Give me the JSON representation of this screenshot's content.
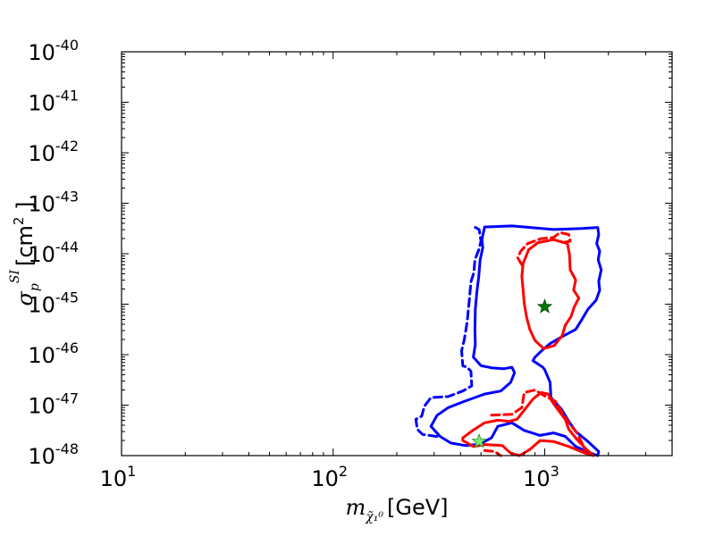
{
  "chart_data": {
    "type": "line",
    "title": "",
    "xscale": "log",
    "yscale": "log",
    "xlim": [
      10,
      4000
    ],
    "ylim": [
      1e-48,
      1e-40
    ],
    "xlabel": {
      "symbol": "m",
      "subscript": "χ̃₁⁰",
      "unit": "[GeV]"
    },
    "ylabel": {
      "symbol": "σ",
      "subscript": "p",
      "superscript": "SI",
      "unit_prefix": "[cm",
      "unit_exp": "2",
      "unit_suffix": " ]"
    },
    "xticks": [
      {
        "value": 10,
        "base": "10",
        "exp": "1"
      },
      {
        "value": 100,
        "base": "10",
        "exp": "2"
      },
      {
        "value": 1000,
        "base": "10",
        "exp": "3"
      }
    ],
    "yticks": [
      {
        "value": 1e-40,
        "base": "10",
        "exp": "-40"
      },
      {
        "value": 1e-41,
        "base": "10",
        "exp": "-41"
      },
      {
        "value": 1e-42,
        "base": "10",
        "exp": "-42"
      },
      {
        "value": 1e-43,
        "base": "10",
        "exp": "-43"
      },
      {
        "value": 1e-44,
        "base": "10",
        "exp": "-44"
      },
      {
        "value": 1e-45,
        "base": "10",
        "exp": "-45"
      },
      {
        "value": 1e-46,
        "base": "10",
        "exp": "-46"
      },
      {
        "value": 1e-47,
        "base": "10",
        "exp": "-47"
      },
      {
        "value": 1e-48,
        "base": "10",
        "exp": "-48"
      }
    ],
    "series": [
      {
        "name": "blue-dashed-contour",
        "color": "#0000ff",
        "dash": true,
        "points": [
          [
            470,
            -43.48
          ],
          [
            490,
            -43.52
          ],
          [
            500,
            -43.75
          ],
          [
            488,
            -43.92
          ],
          [
            468,
            -44.12
          ],
          [
            462,
            -44.38
          ],
          [
            448,
            -44.56
          ],
          [
            440,
            -44.92
          ],
          [
            430,
            -45.35
          ],
          [
            417,
            -45.7
          ],
          [
            405,
            -45.92
          ],
          [
            410,
            -46.22
          ],
          [
            430,
            -46.25
          ],
          [
            448,
            -46.33
          ],
          [
            452,
            -46.62
          ],
          [
            410,
            -46.72
          ],
          [
            350,
            -46.83
          ],
          [
            290,
            -46.85
          ],
          [
            270,
            -47.02
          ],
          [
            262,
            -47.22
          ],
          [
            246,
            -47.28
          ],
          [
            250,
            -47.48
          ],
          [
            265,
            -47.58
          ],
          [
            320,
            -47.63
          ]
        ]
      },
      {
        "name": "blue-solid-contour",
        "color": "#0000ff",
        "dash": false,
        "points": [
          [
            520,
            -43.47
          ],
          [
            700,
            -43.45
          ],
          [
            1100,
            -43.52
          ],
          [
            1500,
            -43.5
          ],
          [
            1780,
            -43.48
          ],
          [
            1800,
            -43.62
          ],
          [
            1760,
            -43.8
          ],
          [
            1820,
            -43.95
          ],
          [
            1790,
            -44.12
          ],
          [
            1850,
            -44.32
          ],
          [
            1800,
            -44.55
          ],
          [
            1820,
            -44.72
          ],
          [
            1750,
            -44.92
          ],
          [
            1600,
            -45.1
          ],
          [
            1500,
            -45.3
          ],
          [
            1400,
            -45.5
          ],
          [
            1200,
            -45.65
          ],
          [
            1060,
            -45.78
          ],
          [
            980,
            -45.9
          ],
          [
            900,
            -46.05
          ],
          [
            880,
            -46.12
          ],
          [
            980,
            -46.25
          ],
          [
            1000,
            -46.3
          ],
          [
            1060,
            -46.55
          ],
          [
            1070,
            -46.85
          ],
          [
            1200,
            -47.08
          ],
          [
            1300,
            -47.32
          ],
          [
            1400,
            -47.52
          ],
          [
            1600,
            -47.72
          ],
          [
            1800,
            -47.92
          ],
          [
            1780,
            -48.0
          ],
          [
            1650,
            -47.95
          ],
          [
            1400,
            -47.82
          ],
          [
            1250,
            -47.62
          ],
          [
            1100,
            -47.55
          ],
          [
            950,
            -47.6
          ],
          [
            800,
            -47.5
          ],
          [
            700,
            -47.35
          ],
          [
            600,
            -47.42
          ],
          [
            560,
            -47.65
          ],
          [
            520,
            -47.72
          ],
          [
            480,
            -47.78
          ],
          [
            420,
            -47.8
          ],
          [
            360,
            -47.75
          ],
          [
            320,
            -47.62
          ],
          [
            290,
            -47.42
          ],
          [
            310,
            -47.2
          ],
          [
            350,
            -47.05
          ],
          [
            420,
            -46.92
          ],
          [
            520,
            -46.78
          ],
          [
            620,
            -46.72
          ],
          [
            690,
            -46.55
          ],
          [
            720,
            -46.36
          ],
          [
            700,
            -46.25
          ],
          [
            640,
            -46.28
          ],
          [
            560,
            -46.26
          ],
          [
            500,
            -46.22
          ],
          [
            460,
            -46.05
          ],
          [
            470,
            -45.8
          ],
          [
            468,
            -45.5
          ],
          [
            470,
            -45.1
          ],
          [
            478,
            -44.75
          ],
          [
            488,
            -44.45
          ],
          [
            495,
            -44.12
          ],
          [
            510,
            -43.88
          ],
          [
            505,
            -43.72
          ],
          [
            520,
            -43.47
          ]
        ]
      },
      {
        "name": "red-dashed-contour-upper",
        "color": "#ff0000",
        "dash": true,
        "points": [
          [
            780,
            -44.22
          ],
          [
            745,
            -44.08
          ],
          [
            770,
            -43.95
          ],
          [
            830,
            -43.8
          ],
          [
            960,
            -43.7
          ],
          [
            1100,
            -43.68
          ],
          [
            1180,
            -43.58
          ],
          [
            1300,
            -43.62
          ],
          [
            1320,
            -43.75
          ],
          [
            1210,
            -43.78
          ]
        ]
      },
      {
        "name": "red-solid-contour-upper",
        "color": "#ff0000",
        "dash": false,
        "points": [
          [
            930,
            -43.78
          ],
          [
            1100,
            -43.72
          ],
          [
            1280,
            -43.8
          ],
          [
            1310,
            -44.02
          ],
          [
            1320,
            -44.32
          ],
          [
            1400,
            -44.52
          ],
          [
            1370,
            -44.72
          ],
          [
            1450,
            -44.88
          ],
          [
            1380,
            -45.05
          ],
          [
            1330,
            -45.25
          ],
          [
            1250,
            -45.42
          ],
          [
            1210,
            -45.62
          ],
          [
            1110,
            -45.82
          ],
          [
            990,
            -45.88
          ],
          [
            900,
            -45.72
          ],
          [
            850,
            -45.5
          ],
          [
            820,
            -45.25
          ],
          [
            800,
            -44.98
          ],
          [
            790,
            -44.7
          ],
          [
            780,
            -44.45
          ],
          [
            790,
            -44.2
          ],
          [
            840,
            -43.92
          ],
          [
            930,
            -43.78
          ]
        ]
      },
      {
        "name": "red-dashed-contour-lower",
        "color": "#ff0000",
        "dash": true,
        "points": [
          [
            560,
            -47.2
          ],
          [
            700,
            -47.18
          ],
          [
            780,
            -47.05
          ],
          [
            800,
            -46.75
          ],
          [
            900,
            -46.7
          ],
          [
            1000,
            -46.82
          ],
          [
            1120,
            -46.92
          ],
          [
            1200,
            -47.12
          ],
          [
            1300,
            -47.35
          ],
          [
            1420,
            -47.55
          ],
          [
            1500,
            -47.75
          ],
          [
            1550,
            -47.9
          ]
        ]
      },
      {
        "name": "red-solid-contour-lower",
        "color": "#ff0000",
        "dash": false,
        "points": [
          [
            410,
            -47.65
          ],
          [
            450,
            -47.52
          ],
          [
            520,
            -47.35
          ],
          [
            600,
            -47.3
          ],
          [
            680,
            -47.32
          ],
          [
            740,
            -47.28
          ],
          [
            800,
            -47.1
          ],
          [
            880,
            -46.88
          ],
          [
            960,
            -46.75
          ],
          [
            1040,
            -46.78
          ],
          [
            1080,
            -46.92
          ],
          [
            1150,
            -47.08
          ],
          [
            1250,
            -47.28
          ],
          [
            1300,
            -47.48
          ],
          [
            1420,
            -47.68
          ],
          [
            1550,
            -47.85
          ],
          [
            1650,
            -47.95
          ],
          [
            1700,
            -48.0
          ],
          [
            1550,
            -47.95
          ],
          [
            1300,
            -47.82
          ],
          [
            1100,
            -47.72
          ],
          [
            950,
            -47.7
          ],
          [
            850,
            -47.88
          ],
          [
            760,
            -48.0
          ],
          [
            690,
            -47.95
          ],
          [
            630,
            -47.8
          ],
          [
            520,
            -47.78
          ],
          [
            460,
            -47.82
          ],
          [
            410,
            -47.7
          ],
          [
            410,
            -47.65
          ]
        ]
      },
      {
        "name": "red-dashed-contour-lower-tail",
        "color": "#ff0000",
        "dash": true,
        "points": [
          [
            520,
            -47.9
          ],
          [
            580,
            -47.92
          ],
          [
            620,
            -48.0
          ]
        ]
      }
    ],
    "markers": [
      {
        "name": "best-fit-star-dark-green",
        "x": 1000,
        "log_y": -45.05,
        "fill": "#007700",
        "stroke": "#004400"
      },
      {
        "name": "best-fit-star-light-green",
        "x": 490,
        "log_y": -47.72,
        "fill": "#77ee77",
        "stroke": "#228822"
      }
    ]
  }
}
